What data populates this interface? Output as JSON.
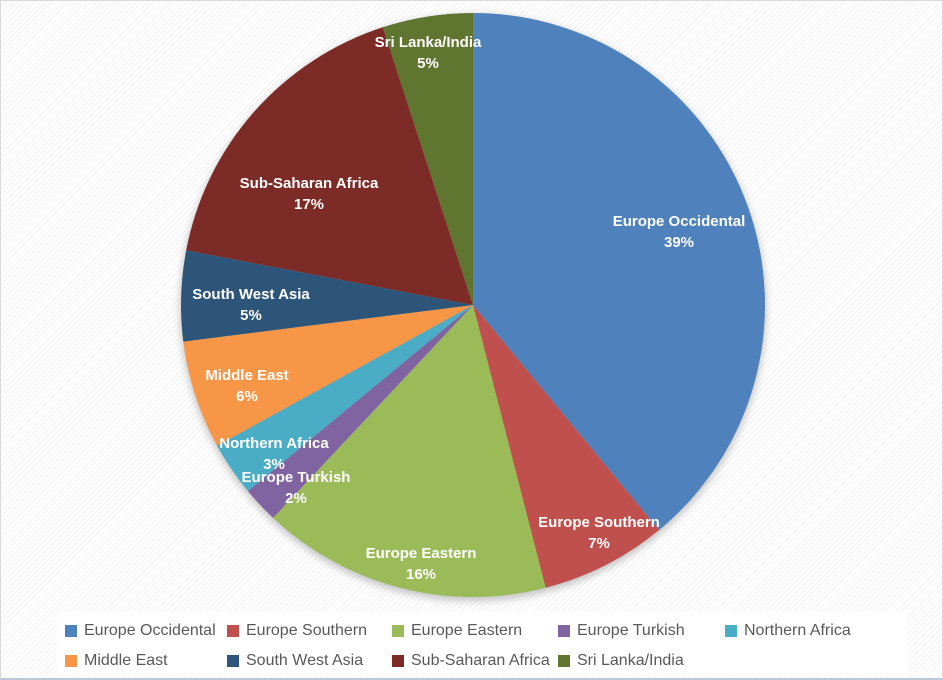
{
  "chart_data": {
    "type": "pie",
    "title": "",
    "categories": [
      "Europe Occidental",
      "Europe Southern",
      "Europe Eastern",
      "Europe Turkish",
      "Northern Africa",
      "Middle East",
      "South West Asia",
      "Sub-Saharan Africa",
      "Sri Lanka/India"
    ],
    "values": [
      39,
      7,
      16,
      2,
      3,
      6,
      5,
      17,
      5
    ],
    "data_labels": [
      "39%",
      "7%",
      "16%",
      "2%",
      "3%",
      "6%",
      "5%",
      "17%",
      "5%"
    ],
    "colors": [
      "#4F81BD",
      "#C0504D",
      "#9BBB59",
      "#8064A2",
      "#4BACC6",
      "#F79646",
      "#2D5479",
      "#7C2B26",
      "#5F7530"
    ],
    "start_angle_deg": 0,
    "direction": "clockwise",
    "legend_position": "bottom",
    "legend_rows": 2,
    "label_text_color": "#ffffff",
    "legend_text_color": "#595959",
    "background_color": "#ffffff"
  }
}
